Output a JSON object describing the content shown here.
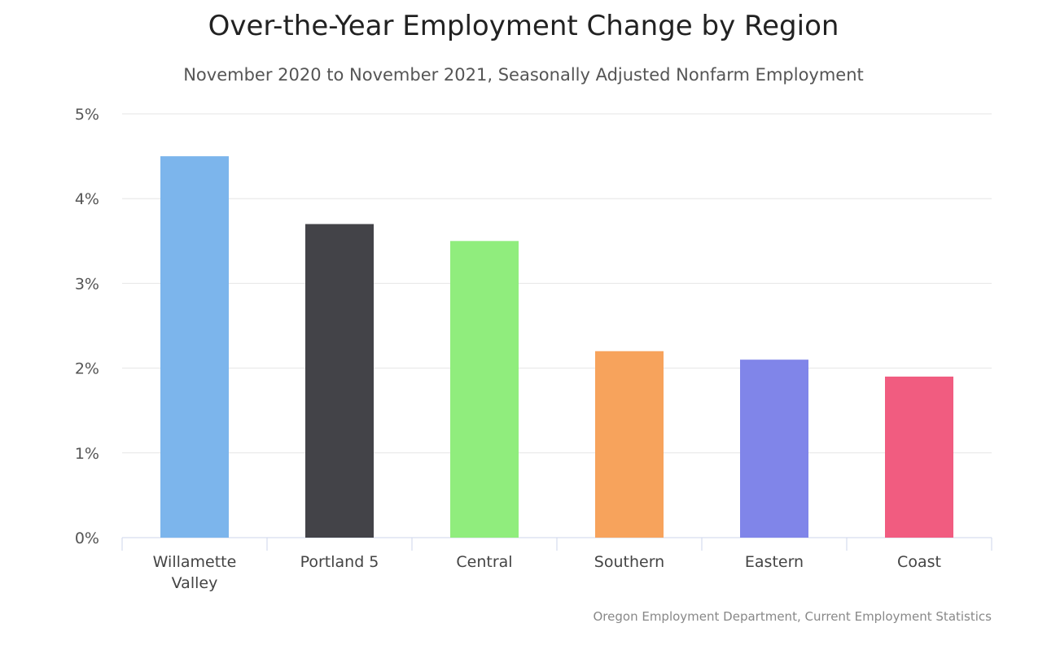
{
  "chart_data": {
    "type": "bar",
    "title": "Over-the-Year Employment Change by Region",
    "subtitle": "November 2020 to November 2021, Seasonally Adjusted Nonfarm Employment",
    "credits": "Oregon Employment Department, Current Employment Statistics",
    "categories": [
      "Willamette Valley",
      "Portland 5",
      "Central",
      "Southern",
      "Eastern",
      "Coast"
    ],
    "category_lines": [
      [
        "Willamette",
        "Valley"
      ],
      [
        "Portland 5"
      ],
      [
        "Central"
      ],
      [
        "Southern"
      ],
      [
        "Eastern"
      ],
      [
        "Coast"
      ]
    ],
    "values": [
      4.5,
      3.7,
      3.5,
      2.2,
      2.1,
      1.9
    ],
    "colors": [
      "#7cb5ec",
      "#434348",
      "#90ed7d",
      "#f7a35c",
      "#8085e9",
      "#f15c80"
    ],
    "ylim": [
      0,
      5
    ],
    "yticks": [
      0,
      1,
      2,
      3,
      4,
      5
    ],
    "ytick_labels": [
      "0%",
      "1%",
      "2%",
      "3%",
      "4%",
      "5%"
    ],
    "grid": true,
    "legend": "none"
  }
}
